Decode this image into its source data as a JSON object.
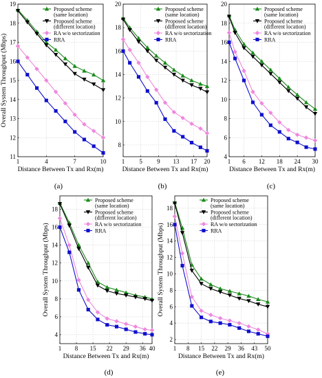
{
  "captions": [
    "(a)",
    "(b)",
    "(c)",
    "(d)",
    "(e)"
  ],
  "colors": {
    "proposed_same": "#1a8a1a",
    "proposed_diff": "#000000",
    "ra_wo": "#ee88dd",
    "rra": "#1010cc"
  },
  "chart_data": [
    {
      "type": "line",
      "xlabel": "Distance Between Tx and Rx(m)",
      "ylabel": "Overall System Throughput (Mbps)",
      "xticks": [
        1,
        4,
        7,
        10
      ],
      "yticks": [
        11,
        12,
        13,
        14,
        15,
        16,
        17,
        18,
        19
      ],
      "xlim": [
        1,
        10
      ],
      "ylim": [
        11,
        19
      ],
      "x": [
        1,
        2,
        3,
        4,
        5,
        6,
        7,
        8,
        9,
        10
      ],
      "series": [
        {
          "name": "Proposed scheme (same location)",
          "values": [
            18.7,
            18.15,
            17.55,
            17.0,
            16.6,
            16.15,
            15.75,
            15.5,
            15.3,
            15.0
          ]
        },
        {
          "name": "Proposed scheme (different location)",
          "values": [
            18.65,
            18.05,
            17.45,
            16.85,
            16.35,
            15.85,
            15.35,
            15.05,
            14.8,
            14.5
          ]
        },
        {
          "name": "RA w/o sectorization",
          "values": [
            16.8,
            16.2,
            15.6,
            15.0,
            14.4,
            13.8,
            13.2,
            12.7,
            12.35,
            12.0
          ]
        },
        {
          "name": "RRA",
          "values": [
            16.0,
            15.3,
            14.6,
            13.95,
            13.4,
            12.85,
            12.3,
            11.9,
            11.55,
            11.2
          ]
        }
      ]
    },
    {
      "type": "line",
      "xlabel": "Distance Between Tx and Rx(m)",
      "ylabel": "",
      "xticks": [
        1,
        5,
        9,
        13,
        17,
        20
      ],
      "yticks": [
        8,
        10,
        12,
        14,
        16,
        18,
        20
      ],
      "xlim": [
        1,
        20
      ],
      "ylim": [
        7,
        20
      ],
      "x": [
        1,
        2.5,
        4.5,
        6.5,
        8.5,
        10.5,
        12.5,
        14.5,
        16.5,
        18.5,
        20
      ],
      "series": [
        {
          "name": "Proposed scheme (same location)",
          "values": [
            18.8,
            18.0,
            17.1,
            16.3,
            15.6,
            15.0,
            14.4,
            13.9,
            13.5,
            13.2,
            13.0
          ]
        },
        {
          "name": "Proposed scheme (different location)",
          "values": [
            18.7,
            17.8,
            16.8,
            16.0,
            15.2,
            14.6,
            14.0,
            13.5,
            13.1,
            12.8,
            12.5
          ]
        },
        {
          "name": "RA w/o sectorization",
          "values": [
            17.0,
            16.1,
            15.0,
            13.8,
            12.7,
            11.6,
            10.8,
            10.3,
            9.8,
            9.4,
            9.0
          ]
        },
        {
          "name": "RRA",
          "values": [
            16.0,
            15.0,
            13.8,
            12.6,
            11.6,
            10.2,
            9.2,
            8.7,
            8.2,
            7.8,
            7.5
          ]
        }
      ]
    },
    {
      "type": "line",
      "xlabel": "Distance Between Tx and Rx(m)",
      "ylabel": "",
      "xticks": [
        1,
        6,
        12,
        18,
        24,
        30
      ],
      "yticks": [
        4,
        6,
        8,
        10,
        12,
        14,
        16,
        18,
        20
      ],
      "xlim": [
        1,
        30
      ],
      "ylim": [
        4,
        20
      ],
      "x": [
        1,
        3,
        6,
        9,
        12,
        15,
        18,
        21,
        24,
        27,
        30
      ],
      "series": [
        {
          "name": "Proposed scheme (same location)",
          "values": [
            18.8,
            17.3,
            15.8,
            14.9,
            14.0,
            13.1,
            12.2,
            11.3,
            10.5,
            9.7,
            9.0
          ]
        },
        {
          "name": "Proposed scheme (different location)",
          "values": [
            18.7,
            17.0,
            15.4,
            14.5,
            13.6,
            12.7,
            11.8,
            10.9,
            10.1,
            9.2,
            8.5
          ]
        },
        {
          "name": "RA w/o sectorization",
          "values": [
            17.0,
            15.0,
            13.0,
            10.8,
            9.6,
            8.6,
            7.6,
            6.8,
            6.3,
            6.0,
            5.7
          ]
        },
        {
          "name": "RRA",
          "values": [
            16.0,
            14.3,
            12.0,
            9.7,
            8.4,
            7.3,
            6.6,
            5.9,
            5.5,
            5.0,
            4.8
          ]
        }
      ]
    },
    {
      "type": "line",
      "xlabel": "Distance Between Tx and Rx(m)",
      "ylabel": "Overall System Throughput (Mbps)",
      "xticks": [
        1,
        8,
        15,
        22,
        29,
        36,
        40
      ],
      "yticks": [
        4,
        6,
        8,
        10,
        12,
        14,
        16,
        18
      ],
      "xlim": [
        1,
        40
      ],
      "ylim": [
        3,
        19.5
      ],
      "x": [
        1,
        5,
        9,
        13,
        17,
        21,
        25,
        29,
        33,
        37,
        40
      ],
      "series": [
        {
          "name": "Proposed scheme (same location)",
          "values": [
            18.7,
            16.5,
            14.0,
            12.0,
            9.9,
            9.3,
            9.0,
            8.7,
            8.4,
            8.2,
            8.0
          ]
        },
        {
          "name": "Proposed scheme (different location)",
          "values": [
            18.6,
            16.2,
            13.6,
            11.5,
            9.5,
            8.9,
            8.6,
            8.4,
            8.2,
            8.0,
            7.8
          ]
        },
        {
          "name": "RA w/o sectorization",
          "values": [
            17.0,
            14.0,
            10.1,
            7.9,
            6.5,
            5.8,
            5.5,
            5.2,
            4.9,
            4.6,
            4.5
          ]
        },
        {
          "name": "RRA",
          "values": [
            16.0,
            13.2,
            9.0,
            6.8,
            5.7,
            5.1,
            4.9,
            4.6,
            4.3,
            4.1,
            4.0
          ]
        }
      ]
    },
    {
      "type": "line",
      "xlabel": "Distance Between Tx and Rx(m)",
      "ylabel": "Overall System Throughput (Mbps)",
      "xticks": [
        1,
        8,
        15,
        22,
        29,
        36,
        43,
        50
      ],
      "yticks": [
        2,
        4,
        6,
        8,
        10,
        12,
        14,
        16,
        18
      ],
      "xlim": [
        1,
        50
      ],
      "ylim": [
        1.5,
        19.5
      ],
      "x": [
        1,
        5,
        10,
        15,
        20,
        25,
        30,
        35,
        40,
        45,
        50
      ],
      "series": [
        {
          "name": "Proposed scheme (same location)",
          "values": [
            18.7,
            15.6,
            11.1,
            9.4,
            8.7,
            8.2,
            7.9,
            7.6,
            7.3,
            6.9,
            6.6
          ]
        },
        {
          "name": "Proposed scheme (different location)",
          "values": [
            18.6,
            15.0,
            10.4,
            8.8,
            8.2,
            7.8,
            7.4,
            7.0,
            6.7,
            6.3,
            6.0
          ]
        },
        {
          "name": "RA w/o sectorization",
          "values": [
            17.0,
            12.5,
            7.2,
            5.5,
            5.0,
            4.6,
            4.3,
            4.0,
            3.6,
            3.2,
            2.7
          ]
        },
        {
          "name": "RRA",
          "values": [
            16.0,
            11.0,
            6.1,
            4.7,
            4.2,
            4.0,
            3.8,
            3.4,
            3.0,
            2.7,
            2.4
          ]
        }
      ]
    }
  ]
}
